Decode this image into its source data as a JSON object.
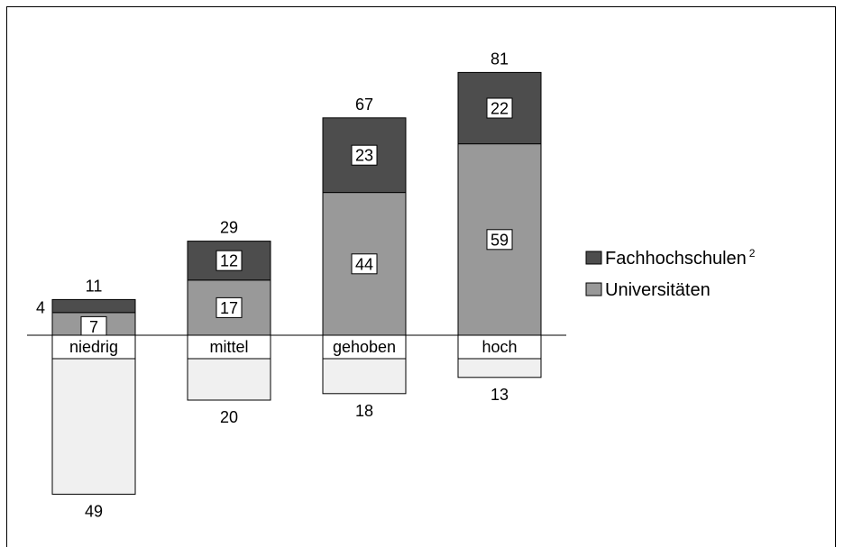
{
  "chart_data": {
    "type": "bar",
    "stacked": true,
    "categories": [
      "niedrig",
      "mittel",
      "gehoben",
      "hoch"
    ],
    "series": [
      {
        "name": "Universitäten",
        "values": [
          7,
          17,
          44,
          59
        ],
        "color": "#999999"
      },
      {
        "name": "Fachhochschulen",
        "name_superscript": "2",
        "values": [
          4,
          12,
          23,
          22
        ],
        "color": "#4d4d4d"
      }
    ],
    "totals": [
      11,
      29,
      67,
      81
    ],
    "below_values": [
      49,
      20,
      18,
      13
    ],
    "below_color": "#f0f0f0",
    "legend": {
      "placement": "right"
    }
  }
}
